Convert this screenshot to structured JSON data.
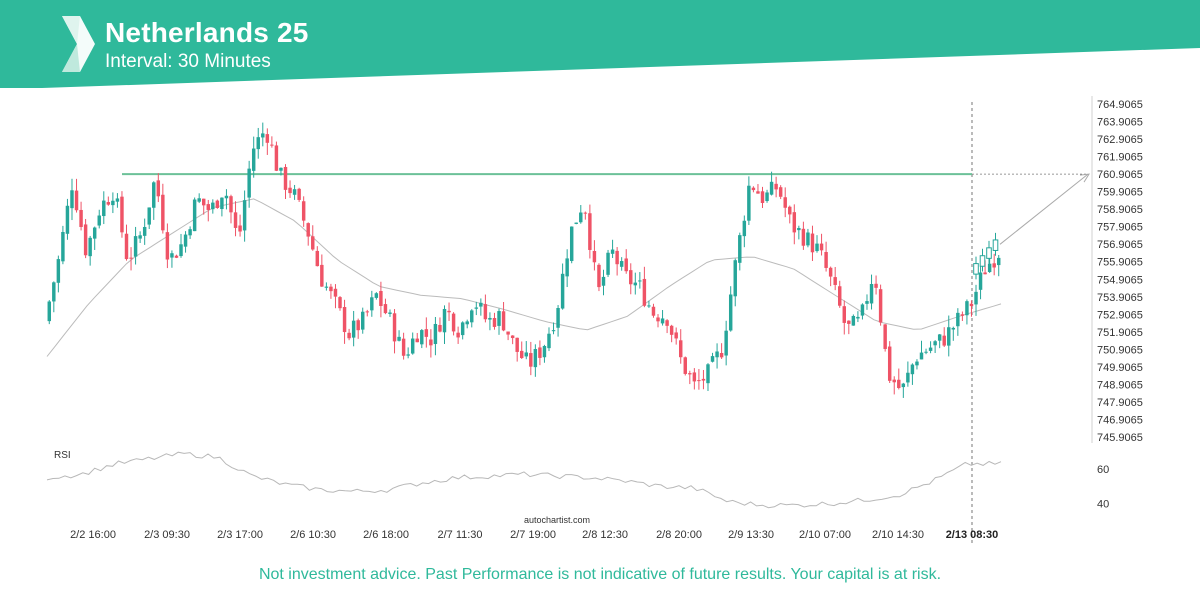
{
  "header": {
    "title": "Netherlands 25",
    "subtitle": "Interval: 30 Minutes",
    "brand_color": "#2fb99b",
    "logo_icon": "autochartist-logo-icon"
  },
  "watermark": "autochartist.com",
  "disclaimer": "Not investment advice. Past Performance is not indicative of future results. Your capital is at risk.",
  "chart_data": {
    "type": "candlestick",
    "title": "Netherlands 25",
    "interval": "30 Minutes",
    "y_ticks": [
      "764.9065",
      "763.9065",
      "762.9065",
      "761.9065",
      "760.9065",
      "759.9065",
      "758.9065",
      "757.9065",
      "756.9065",
      "755.9065",
      "754.9065",
      "753.9065",
      "752.9065",
      "751.9065",
      "750.9065",
      "749.9065",
      "748.9065",
      "747.9065",
      "746.9065",
      "745.9065"
    ],
    "ylim": [
      745.9065,
      764.9065
    ],
    "x_ticks": [
      "2/2 16:00",
      "2/3 09:30",
      "2/3 17:00",
      "2/6 10:30",
      "2/6 18:00",
      "2/7 11:30",
      "2/7 19:00",
      "2/8 12:30",
      "2/8 20:00",
      "2/9 13:30",
      "2/10 07:00",
      "2/10 14:30",
      "2/13 08:30"
    ],
    "highlighted_x_tick": "2/13 08:30",
    "resistance_level": 760.9065,
    "resistance_color": "#6cc198",
    "projection": {
      "from": 756.9,
      "to": 760.9065
    },
    "up_color": "#26a69a",
    "down_color": "#ef5366",
    "price_path": [
      752.5,
      756.0,
      760.5,
      756.5,
      759.0,
      760.0,
      756.0,
      757.5,
      760.7,
      756.0,
      757.0,
      759.5,
      758.8,
      760.2,
      757.0,
      762.3,
      763.5,
      760.8,
      759.8,
      757.7,
      755.0,
      753.5,
      751.8,
      752.5,
      754.0,
      752.5,
      750.5,
      752.0,
      751.5,
      753.2,
      752.0,
      753.8,
      752.5,
      752.8,
      751.0,
      750.0,
      751.0,
      753.0,
      757.5,
      759.5,
      754.0,
      756.5,
      755.0,
      754.5,
      753.0,
      752.8,
      750.3,
      748.8,
      749.5,
      751.0,
      756.0,
      760.5,
      759.5,
      760.2,
      758.0,
      757.3,
      756.5,
      754.5,
      752.0,
      752.5,
      755.5,
      749.5,
      748.5,
      750.5,
      751.0,
      751.5,
      752.5,
      753.5,
      755.5,
      756.5
    ],
    "sma_path": [
      750.5,
      753.5,
      756.0,
      757.5,
      759.0,
      759.5,
      758.2,
      756.0,
      754.5,
      754.0,
      753.8,
      753.2,
      752.5,
      752.0,
      752.8,
      754.5,
      756.0,
      756.2,
      755.5,
      754.0,
      752.5,
      752.0,
      752.8,
      753.5
    ],
    "rsi": {
      "label": "RSI",
      "ticks": [
        "60",
        "40"
      ],
      "path": [
        55,
        57,
        63,
        66,
        69,
        67,
        56,
        51,
        48,
        47,
        48,
        52,
        55,
        56,
        57,
        56,
        55,
        53,
        50,
        49,
        41,
        39,
        39,
        40,
        42,
        45,
        53,
        63,
        63
      ]
    }
  }
}
